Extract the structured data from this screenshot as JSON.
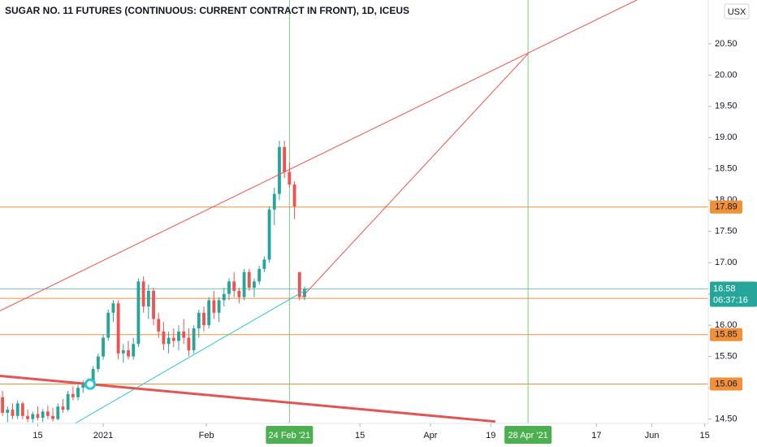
{
  "chart_data": {
    "type": "candlestick",
    "title": "SUGAR NO. 11 FUTURES (CONTINUOUS: CURRENT CONTRACT IN FRONT), 1D, ICEUS",
    "currency": "USX",
    "up_color": "#26a69a",
    "down_color": "#ef5350",
    "grid": false,
    "xlim": [
      -0.5,
      140.2
    ],
    "ylim": [
      14.43,
      21.2
    ],
    "xticks": [
      {
        "value": 7,
        "label": "15"
      },
      {
        "value": 20,
        "label": "2021"
      },
      {
        "value": 40.5,
        "label": "Feb"
      },
      {
        "value": 71,
        "label": "15"
      },
      {
        "value": 85,
        "label": "Apr"
      },
      {
        "value": 97,
        "label": "19"
      },
      {
        "value": 118,
        "label": "17"
      },
      {
        "value": 129,
        "label": "Jun"
      },
      {
        "value": 139.5,
        "label": "15"
      }
    ],
    "yticks": [
      {
        "value": 14.5,
        "label": "14.50"
      },
      {
        "value": 15,
        "label": "15.00"
      },
      {
        "value": 15.5,
        "label": "15.50"
      },
      {
        "value": 16,
        "label": "16.00"
      },
      {
        "value": 16.5,
        "label": "16.50"
      },
      {
        "value": 17,
        "label": "17.00"
      },
      {
        "value": 17.5,
        "label": "17.50"
      },
      {
        "value": 18,
        "label": "18.00"
      },
      {
        "value": 18.5,
        "label": "18.50"
      },
      {
        "value": 19,
        "label": "19.00"
      },
      {
        "value": 19.5,
        "label": "19.50"
      },
      {
        "value": 20,
        "label": "20.00"
      },
      {
        "value": 20.5,
        "label": "20.50"
      }
    ],
    "x": [
      0,
      1,
      2,
      3,
      4,
      5,
      6,
      7,
      8,
      9,
      10,
      11,
      12,
      13,
      14,
      15,
      16,
      17,
      18,
      19,
      20,
      21,
      22,
      23,
      24,
      25,
      26,
      27,
      28,
      29,
      30,
      31,
      32,
      33,
      34,
      35,
      36,
      37,
      38,
      39,
      40,
      41,
      42,
      43,
      44,
      45,
      46,
      47,
      48,
      49,
      50,
      51,
      52,
      53,
      54,
      55,
      56,
      57,
      58,
      59,
      60
    ],
    "open": [
      14.85,
      14.6,
      14.65,
      14.55,
      14.75,
      14.55,
      14.5,
      14.58,
      14.52,
      14.62,
      14.55,
      14.5,
      14.7,
      14.65,
      14.9,
      14.85,
      15.0,
      15.05,
      15.08,
      15.3,
      15.5,
      15.8,
      16.2,
      16.35,
      15.55,
      15.6,
      15.5,
      15.7,
      16.7,
      16.3,
      16.55,
      16.1,
      15.9,
      15.7,
      15.8,
      15.75,
      15.9,
      15.8,
      15.6,
      15.95,
      16.2,
      16.0,
      16.4,
      16.2,
      16.4,
      16.5,
      16.7,
      16.55,
      16.45,
      16.85,
      16.6,
      16.7,
      16.9,
      17.05,
      17.85,
      18.1,
      18.85,
      18.45,
      18.25,
      16.85,
      16.45
    ],
    "high": [
      14.95,
      14.7,
      14.75,
      14.8,
      14.78,
      14.65,
      14.62,
      14.7,
      14.66,
      14.72,
      14.68,
      14.75,
      14.82,
      14.95,
      15.02,
      15.05,
      15.12,
      15.15,
      15.35,
      15.55,
      15.85,
      16.25,
      16.4,
      16.4,
      15.7,
      15.75,
      15.8,
      16.75,
      16.78,
      16.65,
      16.6,
      16.2,
      16.05,
      15.9,
      15.95,
      16.0,
      16.1,
      15.95,
      16.0,
      16.25,
      16.3,
      16.45,
      16.55,
      16.45,
      16.6,
      16.75,
      16.85,
      16.6,
      16.9,
      16.9,
      16.75,
      16.95,
      17.1,
      17.9,
      18.2,
      18.95,
      18.95,
      18.6,
      18.3,
      16.85,
      16.62
    ],
    "low": [
      14.55,
      14.45,
      14.5,
      14.5,
      14.5,
      14.45,
      14.44,
      14.48,
      14.45,
      14.5,
      14.46,
      14.48,
      14.6,
      14.62,
      14.8,
      14.8,
      14.92,
      14.98,
      15.02,
      15.25,
      15.45,
      15.75,
      16.05,
      15.45,
      15.4,
      15.45,
      15.45,
      15.65,
      16.2,
      16.1,
      16.0,
      15.8,
      15.6,
      15.55,
      15.65,
      15.6,
      15.7,
      15.5,
      15.55,
      15.8,
      15.9,
      15.95,
      16.1,
      16.05,
      16.3,
      16.4,
      16.45,
      16.35,
      16.4,
      16.55,
      16.45,
      16.65,
      16.85,
      17.0,
      17.6,
      18.0,
      18.35,
      18.2,
      17.7,
      16.4,
      16.4
    ],
    "close": [
      14.6,
      14.65,
      14.55,
      14.75,
      14.55,
      14.5,
      14.58,
      14.52,
      14.62,
      14.55,
      14.5,
      14.7,
      14.65,
      14.9,
      14.85,
      15.0,
      15.05,
      15.08,
      15.3,
      15.5,
      15.8,
      16.2,
      16.35,
      15.55,
      15.6,
      15.5,
      15.7,
      16.7,
      16.3,
      16.55,
      16.1,
      15.9,
      15.7,
      15.8,
      15.75,
      15.9,
      15.8,
      15.6,
      15.95,
      16.2,
      16.0,
      16.4,
      16.2,
      16.4,
      16.5,
      16.7,
      16.55,
      16.45,
      16.85,
      16.6,
      16.7,
      16.9,
      17.05,
      17.85,
      18.1,
      18.85,
      18.45,
      18.25,
      17.9,
      16.45,
      16.58
    ],
    "hlines": [
      {
        "value": 17.89,
        "color": "#f0913a"
      },
      {
        "value": 16.43,
        "color": "#f0913a"
      },
      {
        "value": 15.85,
        "color": "#f0913a"
      },
      {
        "value": 15.06,
        "color": "#f0913a"
      }
    ],
    "last_price": {
      "value": 16.58,
      "countdown": "06:37:16",
      "color": "#26a69a"
    },
    "vlines": [
      {
        "x": 57,
        "label": "24 Feb '21",
        "color": "#4caf50"
      },
      {
        "x": 104.4,
        "label": "28 Apr '21",
        "color": "#4caf50"
      }
    ],
    "trendlines": [
      {
        "color": "#ef5350",
        "width": 1,
        "x": [
          -0.5,
          126
        ],
        "y": [
          16.23,
          21.2
        ]
      },
      {
        "color": "#ef5350",
        "width": 1,
        "x": [
          59.5,
          104.4
        ],
        "y": [
          16.45,
          20.34
        ]
      },
      {
        "color": "#26c6da",
        "width": 1,
        "x": [
          14.4,
          60.8
        ],
        "y": [
          14.43,
          16.59
        ]
      },
      {
        "color": "#e05555",
        "width": 3,
        "x": [
          -0.5,
          97.9
        ],
        "y": [
          15.19,
          14.46
        ]
      }
    ]
  }
}
